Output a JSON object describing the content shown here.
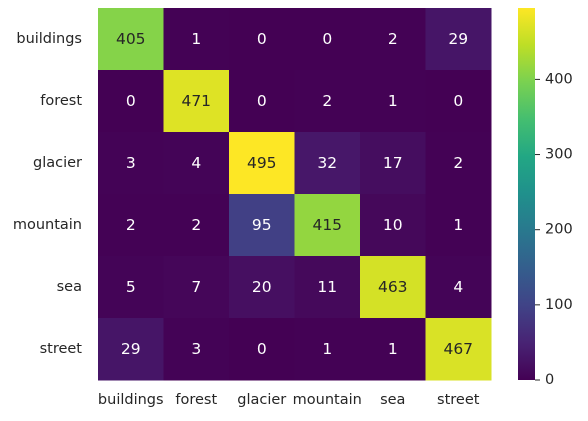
{
  "chart_data": {
    "type": "heatmap",
    "title": "",
    "xlabel": "",
    "ylabel": "",
    "x_categories": [
      "buildings",
      "forest",
      "glacier",
      "mountain",
      "sea",
      "street"
    ],
    "y_categories": [
      "buildings",
      "forest",
      "glacier",
      "mountain",
      "sea",
      "street"
    ],
    "values": [
      [
        405,
        1,
        0,
        0,
        2,
        29
      ],
      [
        0,
        471,
        0,
        2,
        1,
        0
      ],
      [
        3,
        4,
        495,
        32,
        17,
        2
      ],
      [
        2,
        2,
        95,
        415,
        10,
        1
      ],
      [
        5,
        7,
        20,
        11,
        463,
        4
      ],
      [
        29,
        3,
        0,
        1,
        1,
        467
      ]
    ],
    "annotations": true,
    "colormap": "viridis",
    "colorbar": {
      "min": 0,
      "max": 495,
      "ticks": [
        0,
        100,
        200,
        300,
        400
      ]
    },
    "grid": false,
    "annotation_colors": {
      "light_text": "#ffffff",
      "dark_text": "#262626"
    }
  }
}
